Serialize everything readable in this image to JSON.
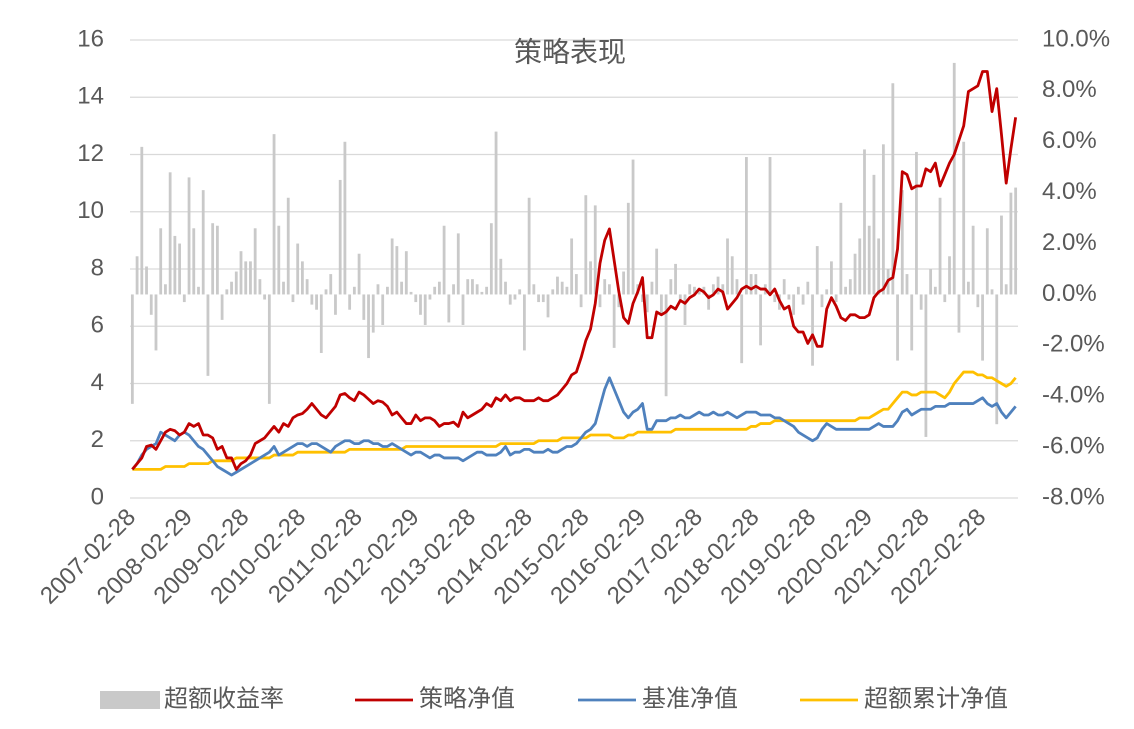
{
  "chart_data": {
    "type": "combo",
    "title": "策略表现",
    "categories": [
      "2007-02-28",
      null,
      null,
      null,
      null,
      null,
      null,
      null,
      null,
      null,
      null,
      null,
      "2008-02-29",
      null,
      null,
      null,
      null,
      null,
      null,
      null,
      null,
      null,
      null,
      null,
      "2009-02-28",
      null,
      null,
      null,
      null,
      null,
      null,
      null,
      null,
      null,
      null,
      null,
      "2010-02-28",
      null,
      null,
      null,
      null,
      null,
      null,
      null,
      null,
      null,
      null,
      null,
      "2011-02-28",
      null,
      null,
      null,
      null,
      null,
      null,
      null,
      null,
      null,
      null,
      null,
      "2012-02-29",
      null,
      null,
      null,
      null,
      null,
      null,
      null,
      null,
      null,
      null,
      null,
      "2013-02-28",
      null,
      null,
      null,
      null,
      null,
      null,
      null,
      null,
      null,
      null,
      null,
      "2014-02-28",
      null,
      null,
      null,
      null,
      null,
      null,
      null,
      null,
      null,
      null,
      null,
      "2015-02-28",
      null,
      null,
      null,
      null,
      null,
      null,
      null,
      null,
      null,
      null,
      null,
      "2016-02-29",
      null,
      null,
      null,
      null,
      null,
      null,
      null,
      null,
      null,
      null,
      null,
      "2017-02-28",
      null,
      null,
      null,
      null,
      null,
      null,
      null,
      null,
      null,
      null,
      null,
      "2018-02-28",
      null,
      null,
      null,
      null,
      null,
      null,
      null,
      null,
      null,
      null,
      null,
      "2019-02-28",
      null,
      null,
      null,
      null,
      null,
      null,
      null,
      null,
      null,
      null,
      null,
      "2020-02-29",
      null,
      null,
      null,
      null,
      null,
      null,
      null,
      null,
      null,
      null,
      null,
      "2021-02-28",
      null,
      null,
      null,
      null,
      null,
      null,
      null,
      null,
      null,
      null,
      null,
      "2022-02-28",
      null,
      null,
      null,
      null,
      null,
      null,
      null
    ],
    "series": [
      {
        "name": "超额收益率",
        "type": "bar",
        "axis": "y2",
        "color": "#c9c9c9",
        "values": [
          -4.3,
          1.5,
          5.8,
          1.1,
          -0.8,
          -2.2,
          2.6,
          0.4,
          4.8,
          2.3,
          2.0,
          -0.3,
          4.6,
          2.6,
          0.3,
          4.1,
          -3.2,
          2.8,
          2.7,
          -1.0,
          0.2,
          0.5,
          0.9,
          1.7,
          1.3,
          1.3,
          2.6,
          0.6,
          -0.2,
          -4.3,
          6.3,
          2.7,
          0.5,
          3.8,
          -0.3,
          2.0,
          1.3,
          0.6,
          -0.4,
          -0.6,
          -2.3,
          0.2,
          0.8,
          -0.8,
          4.5,
          6.0,
          -0.6,
          0.3,
          1.6,
          -1.0,
          -2.5,
          -1.5,
          0.4,
          -1.2,
          0.3,
          2.2,
          1.9,
          0.5,
          1.7,
          0.1,
          -0.3,
          -0.8,
          -1.2,
          -0.2,
          0.3,
          0.5,
          2.7,
          -1.1,
          0.4,
          2.4,
          -1.2,
          0.6,
          0.6,
          0.4,
          0.1,
          0.3,
          2.8,
          6.4,
          1.4,
          0.5,
          -0.4,
          -0.2,
          0.2,
          -2.2,
          3.8,
          0.4,
          -0.3,
          -0.3,
          -0.9,
          0.2,
          0.7,
          0.5,
          0.3,
          2.2,
          0.8,
          -0.5,
          3.9,
          1.3,
          3.5,
          -0.5,
          0.6,
          0.4,
          -2.1,
          -0.5,
          0.9,
          3.6,
          5.3,
          0.4,
          -0.3,
          -0.7,
          0.5,
          1.8,
          -0.8,
          -4.0,
          0.6,
          1.2,
          -0.3,
          -1.2,
          0.4,
          0.3,
          0.2,
          0.3,
          -0.6,
          0.4,
          0.7,
          0.4,
          2.2,
          1.5,
          0.6,
          -2.7,
          5.4,
          0.8,
          0.8,
          -2.0,
          0.4,
          5.4,
          -0.3,
          -0.6,
          0.6,
          -0.2,
          -0.8,
          0.3,
          -0.4,
          0.5,
          -2.8,
          1.9,
          -0.5,
          0.2,
          1.3,
          -0.3,
          3.6,
          0.3,
          0.6,
          1.6,
          2.2,
          5.7,
          2.7,
          4.7,
          2.2,
          5.9,
          1.0,
          8.3,
          -2.6,
          4.1,
          0.8,
          -2.2,
          5.6,
          -0.6,
          -5.6,
          1.0,
          0.3,
          3.8,
          -0.3,
          1.5,
          9.1,
          -1.5,
          6.0,
          0.5,
          2.7,
          -0.5,
          -2.6,
          2.6,
          0.2,
          -5.1,
          3.1,
          0.4,
          4.0,
          4.2
        ]
      },
      {
        "name": "策略净值",
        "type": "line",
        "color": "#c00000",
        "values": [
          1.0,
          1.2,
          1.4,
          1.8,
          1.85,
          1.7,
          2.0,
          2.3,
          2.4,
          2.35,
          2.2,
          2.3,
          2.6,
          2.5,
          2.6,
          2.2,
          2.2,
          2.1,
          1.7,
          1.8,
          1.4,
          1.4,
          1.0,
          1.2,
          1.3,
          1.5,
          1.9,
          2.0,
          2.1,
          2.3,
          2.5,
          2.3,
          2.6,
          2.5,
          2.8,
          2.9,
          2.95,
          3.1,
          3.3,
          3.1,
          2.9,
          2.8,
          3.0,
          3.2,
          3.6,
          3.65,
          3.5,
          3.4,
          3.7,
          3.6,
          3.45,
          3.3,
          3.4,
          3.35,
          3.2,
          2.9,
          3.0,
          2.8,
          2.6,
          2.6,
          2.9,
          2.7,
          2.8,
          2.8,
          2.7,
          2.5,
          2.6,
          2.6,
          2.65,
          2.5,
          3.0,
          2.8,
          2.9,
          3.0,
          3.1,
          3.3,
          3.2,
          3.5,
          3.4,
          3.6,
          3.4,
          3.5,
          3.5,
          3.4,
          3.4,
          3.4,
          3.5,
          3.4,
          3.4,
          3.5,
          3.6,
          3.8,
          4.0,
          4.3,
          4.4,
          4.9,
          5.5,
          5.9,
          6.8,
          8.2,
          9.0,
          9.4,
          8.3,
          7.2,
          6.3,
          6.1,
          6.8,
          7.2,
          7.7,
          5.6,
          5.6,
          6.5,
          6.4,
          6.5,
          6.7,
          6.6,
          6.9,
          6.8,
          7.0,
          7.1,
          7.3,
          7.2,
          7.0,
          7.1,
          7.3,
          7.2,
          6.6,
          6.8,
          7.0,
          7.3,
          7.4,
          7.3,
          7.4,
          7.3,
          7.3,
          7.1,
          7.3,
          6.9,
          6.6,
          6.7,
          6.0,
          5.8,
          5.8,
          5.4,
          5.7,
          5.3,
          5.3,
          6.6,
          7.0,
          6.7,
          6.3,
          6.2,
          6.4,
          6.4,
          6.3,
          6.3,
          6.4,
          7.0,
          7.2,
          7.3,
          7.6,
          7.7,
          8.7,
          11.4,
          11.3,
          10.8,
          10.9,
          10.9,
          11.5,
          11.4,
          11.7,
          10.9,
          11.3,
          11.7,
          12.0,
          12.5,
          13.0,
          14.2,
          14.3,
          14.4,
          14.9,
          14.9,
          13.5,
          14.3,
          12.7,
          11.0,
          12.2,
          13.3
        ]
      },
      {
        "name": "基准净值",
        "type": "line",
        "color": "#4f81bd",
        "values": [
          1.0,
          1.2,
          1.5,
          1.7,
          1.8,
          1.9,
          2.3,
          2.2,
          2.1,
          2.0,
          2.2,
          2.3,
          2.2,
          2.0,
          1.8,
          1.7,
          1.5,
          1.3,
          1.1,
          1.0,
          0.9,
          0.8,
          0.9,
          1.0,
          1.1,
          1.2,
          1.3,
          1.4,
          1.5,
          1.6,
          1.8,
          1.5,
          1.6,
          1.7,
          1.8,
          1.9,
          1.9,
          1.8,
          1.9,
          1.9,
          1.8,
          1.7,
          1.6,
          1.8,
          1.9,
          2.0,
          2.0,
          1.9,
          1.9,
          2.0,
          2.0,
          1.9,
          1.9,
          1.8,
          1.8,
          1.9,
          1.8,
          1.7,
          1.6,
          1.5,
          1.6,
          1.6,
          1.5,
          1.4,
          1.5,
          1.5,
          1.4,
          1.4,
          1.4,
          1.4,
          1.3,
          1.4,
          1.5,
          1.6,
          1.6,
          1.5,
          1.5,
          1.5,
          1.6,
          1.8,
          1.5,
          1.6,
          1.6,
          1.7,
          1.7,
          1.6,
          1.6,
          1.6,
          1.7,
          1.6,
          1.6,
          1.7,
          1.8,
          1.8,
          1.9,
          2.1,
          2.3,
          2.4,
          2.6,
          3.2,
          3.8,
          4.2,
          3.8,
          3.4,
          3.0,
          2.8,
          3.0,
          3.1,
          3.3,
          2.4,
          2.4,
          2.7,
          2.7,
          2.7,
          2.8,
          2.8,
          2.9,
          2.8,
          2.8,
          2.9,
          3.0,
          2.9,
          2.9,
          3.0,
          2.9,
          2.9,
          3.0,
          2.9,
          2.8,
          2.9,
          3.0,
          3.0,
          3.0,
          2.9,
          2.9,
          2.9,
          2.8,
          2.8,
          2.7,
          2.6,
          2.5,
          2.3,
          2.2,
          2.1,
          2.0,
          2.1,
          2.4,
          2.6,
          2.5,
          2.4,
          2.4,
          2.4,
          2.4,
          2.4,
          2.4,
          2.4,
          2.4,
          2.5,
          2.6,
          2.5,
          2.5,
          2.5,
          2.7,
          3.0,
          3.1,
          2.9,
          3.0,
          3.1,
          3.1,
          3.1,
          3.2,
          3.2,
          3.2,
          3.3,
          3.3,
          3.3,
          3.3,
          3.3,
          3.3,
          3.4,
          3.5,
          3.3,
          3.2,
          3.3,
          3.0,
          2.8,
          3.0,
          3.2
        ]
      },
      {
        "name": "超额累计净值",
        "type": "line",
        "color": "#ffc000",
        "values": [
          1.0,
          1.0,
          1.0,
          1.0,
          1.0,
          1.0,
          1.0,
          1.1,
          1.1,
          1.1,
          1.1,
          1.1,
          1.2,
          1.2,
          1.2,
          1.2,
          1.2,
          1.3,
          1.3,
          1.3,
          1.3,
          1.3,
          1.4,
          1.4,
          1.4,
          1.4,
          1.4,
          1.4,
          1.4,
          1.4,
          1.5,
          1.5,
          1.5,
          1.5,
          1.5,
          1.6,
          1.6,
          1.6,
          1.6,
          1.6,
          1.6,
          1.6,
          1.6,
          1.6,
          1.6,
          1.6,
          1.7,
          1.7,
          1.7,
          1.7,
          1.7,
          1.7,
          1.7,
          1.7,
          1.7,
          1.7,
          1.7,
          1.7,
          1.8,
          1.8,
          1.8,
          1.8,
          1.8,
          1.8,
          1.8,
          1.8,
          1.8,
          1.8,
          1.8,
          1.8,
          1.8,
          1.8,
          1.8,
          1.8,
          1.8,
          1.8,
          1.8,
          1.8,
          1.9,
          1.9,
          1.9,
          1.9,
          1.9,
          1.9,
          1.9,
          1.9,
          2.0,
          2.0,
          2.0,
          2.0,
          2.0,
          2.1,
          2.1,
          2.1,
          2.1,
          2.1,
          2.1,
          2.2,
          2.2,
          2.2,
          2.2,
          2.2,
          2.1,
          2.1,
          2.1,
          2.2,
          2.2,
          2.3,
          2.3,
          2.3,
          2.3,
          2.3,
          2.3,
          2.3,
          2.3,
          2.4,
          2.4,
          2.4,
          2.4,
          2.4,
          2.4,
          2.4,
          2.4,
          2.4,
          2.4,
          2.4,
          2.4,
          2.4,
          2.4,
          2.4,
          2.4,
          2.5,
          2.5,
          2.6,
          2.6,
          2.6,
          2.7,
          2.7,
          2.7,
          2.7,
          2.7,
          2.7,
          2.7,
          2.7,
          2.7,
          2.7,
          2.7,
          2.7,
          2.7,
          2.7,
          2.7,
          2.7,
          2.7,
          2.7,
          2.8,
          2.8,
          2.8,
          2.9,
          3.0,
          3.1,
          3.1,
          3.3,
          3.5,
          3.7,
          3.7,
          3.6,
          3.6,
          3.7,
          3.7,
          3.7,
          3.7,
          3.6,
          3.5,
          3.7,
          4.0,
          4.2,
          4.4,
          4.4,
          4.4,
          4.3,
          4.3,
          4.2,
          4.2,
          4.1,
          4.0,
          3.9,
          4.0,
          4.2
        ]
      }
    ],
    "ylim": [
      0,
      16
    ],
    "yticks": [
      0,
      2,
      4,
      6,
      8,
      10,
      12,
      14,
      16
    ],
    "y2lim": [
      -8,
      10
    ],
    "y2ticks": [
      {
        "value": -8,
        "label": "-8.0%"
      },
      {
        "value": -6,
        "label": "-6.0%"
      },
      {
        "value": -4,
        "label": "-4.0%"
      },
      {
        "value": -2,
        "label": "-2.0%"
      },
      {
        "value": 0,
        "label": "0.0%"
      },
      {
        "value": 2,
        "label": "2.0%"
      },
      {
        "value": 4,
        "label": "4.0%"
      },
      {
        "value": 6,
        "label": "6.0%"
      },
      {
        "value": 8,
        "label": "8.0%"
      },
      {
        "value": 10,
        "label": "10.0%"
      }
    ],
    "grid": true,
    "legend": "bottom"
  }
}
